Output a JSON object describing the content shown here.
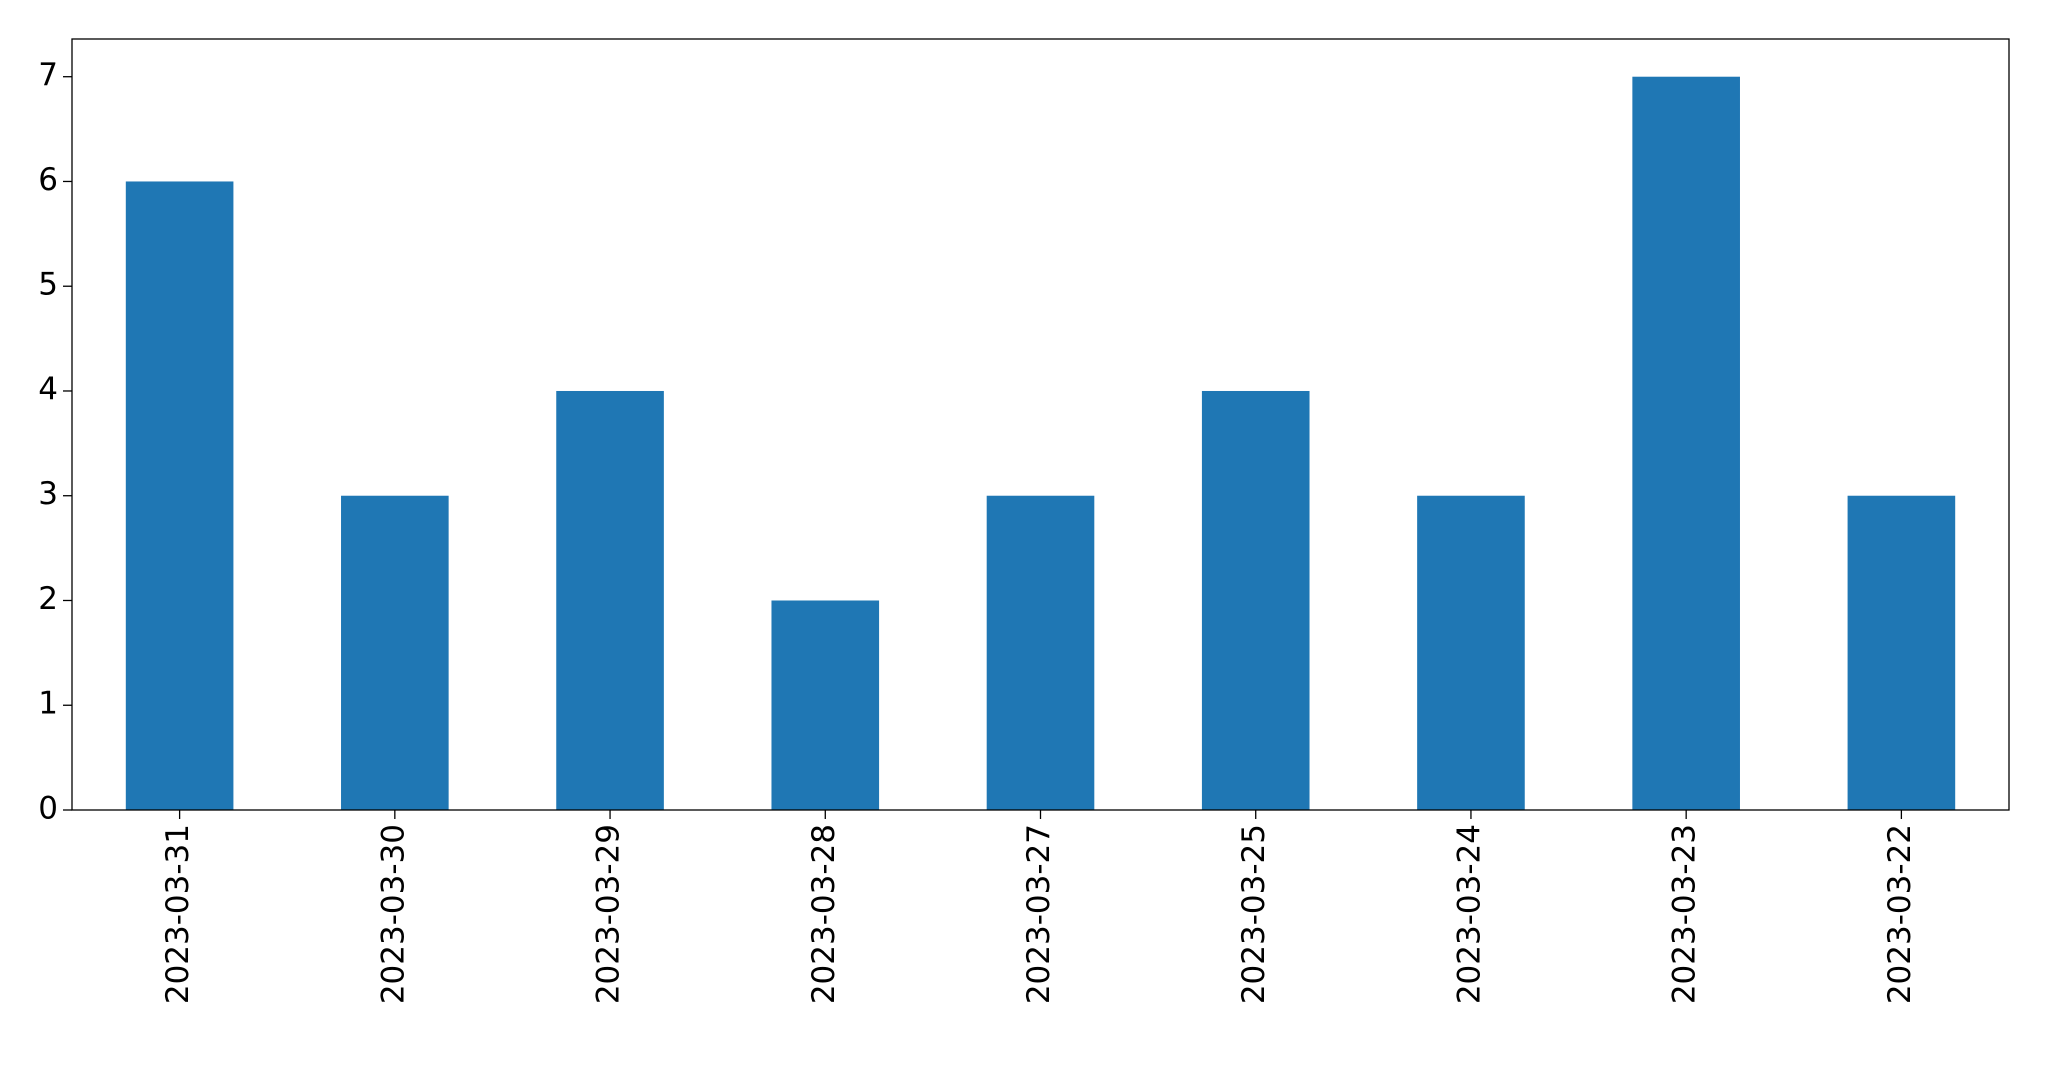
{
  "chart_data": {
    "type": "bar",
    "categories": [
      "2023-03-31",
      "2023-03-30",
      "2023-03-29",
      "2023-03-28",
      "2023-03-27",
      "2023-03-25",
      "2023-03-24",
      "2023-03-23",
      "2023-03-22"
    ],
    "values": [
      6,
      3,
      4,
      2,
      3,
      4,
      3,
      7,
      3
    ],
    "color": "#1f77b4",
    "ylim": [
      0,
      7.36
    ],
    "yticks": [
      0,
      1,
      2,
      3,
      4,
      5,
      6,
      7
    ],
    "grid": false
  }
}
